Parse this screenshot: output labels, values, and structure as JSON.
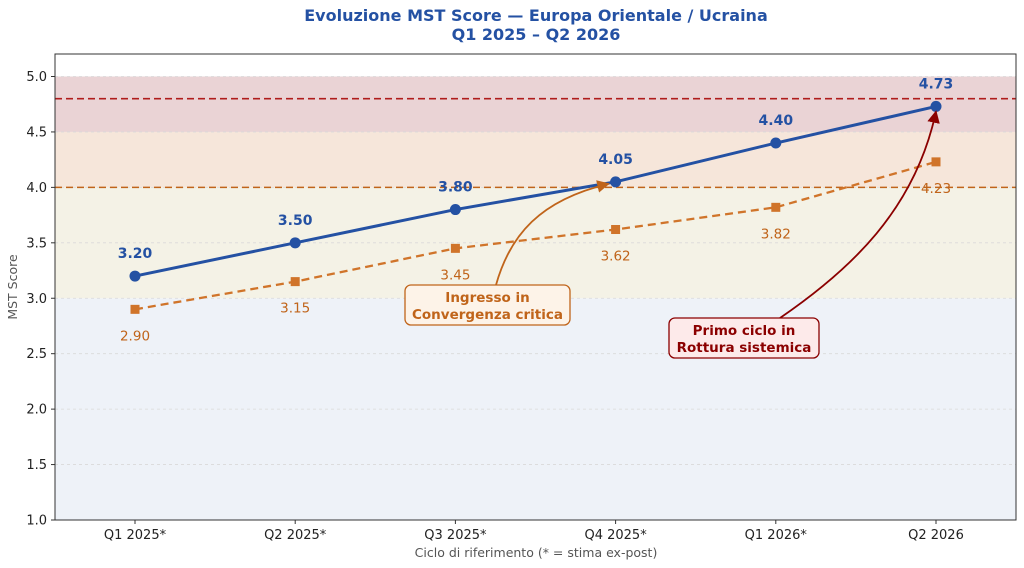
{
  "chart_data": {
    "type": "line",
    "title_line1": "Evoluzione MST Score — Europa Orientale / Ucraina",
    "title_line2": "Q1 2025 – Q2 2026",
    "xlabel": "Ciclo di riferimento  (* = stima ex-post)",
    "ylabel": "MST Score",
    "categories": [
      "Q1 2025*",
      "Q2 2025*",
      "Q3 2025*",
      "Q4 2025*",
      "Q1 2026*",
      "Q2 2026"
    ],
    "ylim": [
      1.0,
      5.0
    ],
    "yticks": [
      "1.0",
      "1.5",
      "2.0",
      "2.5",
      "3.0",
      "3.5",
      "4.0",
      "4.5",
      "5.0"
    ],
    "series": [
      {
        "values": [
          3.2,
          3.5,
          3.8,
          4.05,
          4.4,
          4.73
        ],
        "labels": [
          "3.20",
          "3.50",
          "3.80",
          "4.05",
          "4.40",
          "4.73"
        ],
        "color": "#2451a3",
        "style": "solid",
        "marker": "circle"
      },
      {
        "values": [
          2.9,
          3.15,
          3.45,
          3.62,
          3.82,
          4.23
        ],
        "labels": [
          "2.90",
          "3.15",
          "3.45",
          "3.62",
          "3.82",
          "4.23"
        ],
        "color": "#d0742a",
        "style": "dashed",
        "marker": "square"
      }
    ],
    "bands": [
      {
        "from": 1.0,
        "to": 3.0,
        "color": "#eef2f8"
      },
      {
        "from": 3.0,
        "to": 4.0,
        "color": "#f4f2e6"
      },
      {
        "from": 4.0,
        "to": 4.5,
        "color": "#f6e6da"
      },
      {
        "from": 4.5,
        "to": 5.0,
        "color": "#ead3d5"
      }
    ],
    "threshold_lines": [
      {
        "value": 4.0,
        "color": "#c0641a"
      },
      {
        "value": 4.8,
        "color": "#b01c1c"
      }
    ],
    "annotations": [
      {
        "text_line1": "Ingresso in",
        "text_line2": "Convergenza critica",
        "target_category": "Q4 2025*",
        "color": "#c0641a"
      },
      {
        "text_line1": "Primo ciclo in",
        "text_line2": "Rottura sistemica",
        "target_category": "Q2 2026",
        "color": "#8b0000"
      }
    ],
    "grid": "horizontal"
  }
}
